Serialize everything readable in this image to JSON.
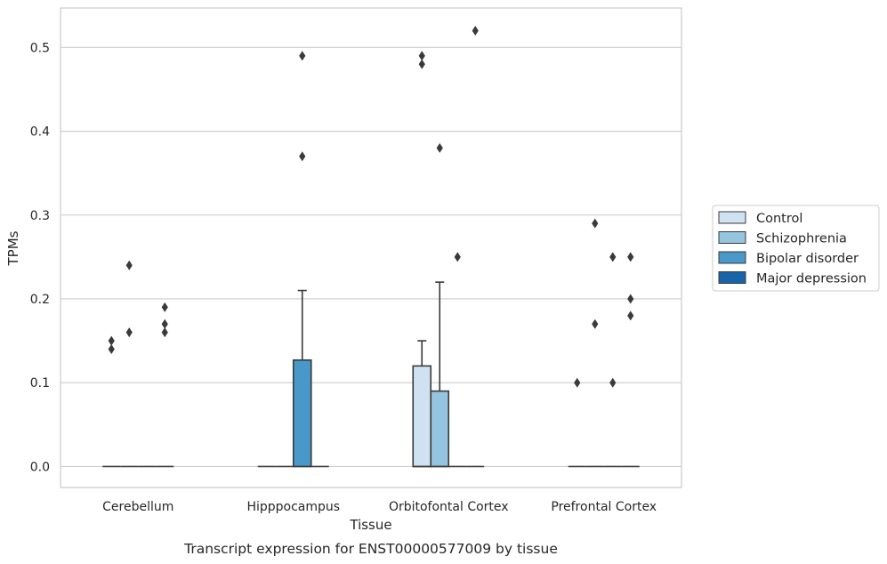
{
  "chart_data": {
    "type": "box",
    "xlabel": "Tissue",
    "ylabel": "TPMs",
    "caption": "Transcript expression for ENST00000577009 by tissue",
    "ylim": [
      -0.025,
      0.547
    ],
    "yticks": [
      0.0,
      0.1,
      0.2,
      0.3,
      0.4,
      0.5
    ],
    "ytick_labels": [
      "0.0",
      "0.1",
      "0.2",
      "0.3",
      "0.4",
      "0.5"
    ],
    "grid": "horizontal",
    "legend_position": "right",
    "categories": [
      "Cerebellum",
      "Hipppocampus",
      "Orbitofontal Cortex",
      "Prefrontal Cortex"
    ],
    "series": [
      {
        "name": "Control",
        "color": "#d0e1f2",
        "boxes": [
          {
            "min": 0,
            "q1": 0,
            "median": 0,
            "q3": 0,
            "max": 0,
            "outliers": [
              0.15,
              0.14
            ]
          },
          {
            "min": 0,
            "q1": 0,
            "median": 0,
            "q3": 0,
            "max": 0,
            "outliers": []
          },
          {
            "min": 0,
            "q1": 0,
            "median": 0,
            "q3": 0.12,
            "max": 0.15,
            "outliers": [
              0.49,
              0.48
            ]
          },
          {
            "min": 0,
            "q1": 0,
            "median": 0,
            "q3": 0,
            "max": 0,
            "outliers": [
              0.1
            ]
          }
        ]
      },
      {
        "name": "Schizophrenia",
        "color": "#94c4df",
        "boxes": [
          {
            "min": 0,
            "q1": 0,
            "median": 0,
            "q3": 0,
            "max": 0,
            "outliers": [
              0.24,
              0.16
            ]
          },
          {
            "min": 0,
            "q1": 0,
            "median": 0,
            "q3": 0,
            "max": 0,
            "outliers": []
          },
          {
            "min": 0,
            "q1": 0,
            "median": 0,
            "q3": 0.09,
            "max": 0.22,
            "outliers": [
              0.38
            ]
          },
          {
            "min": 0,
            "q1": 0,
            "median": 0,
            "q3": 0,
            "max": 0,
            "outliers": [
              0.29,
              0.17
            ]
          }
        ]
      },
      {
        "name": "Bipolar disorder",
        "color": "#4a98c9",
        "boxes": [
          {
            "min": 0,
            "q1": 0,
            "median": 0,
            "q3": 0,
            "max": 0,
            "outliers": []
          },
          {
            "min": 0,
            "q1": 0,
            "median": 0,
            "q3": 0.127,
            "max": 0.21,
            "outliers": [
              0.49,
              0.37
            ]
          },
          {
            "min": 0,
            "q1": 0,
            "median": 0,
            "q3": 0,
            "max": 0,
            "outliers": [
              0.25
            ]
          },
          {
            "min": 0,
            "q1": 0,
            "median": 0,
            "q3": 0,
            "max": 0,
            "outliers": [
              0.25,
              0.1
            ]
          }
        ]
      },
      {
        "name": "Major depression",
        "color": "#1764ab",
        "boxes": [
          {
            "min": 0,
            "q1": 0,
            "median": 0,
            "q3": 0,
            "max": 0,
            "outliers": [
              0.19,
              0.17,
              0.16
            ]
          },
          {
            "min": 0,
            "q1": 0,
            "median": 0,
            "q3": 0,
            "max": 0,
            "outliers": []
          },
          {
            "min": 0,
            "q1": 0,
            "median": 0,
            "q3": 0,
            "max": 0,
            "outliers": [
              0.52
            ]
          },
          {
            "min": 0,
            "q1": 0,
            "median": 0,
            "q3": 0,
            "max": 0,
            "outliers": [
              0.25,
              0.2,
              0.18
            ]
          }
        ]
      }
    ]
  }
}
